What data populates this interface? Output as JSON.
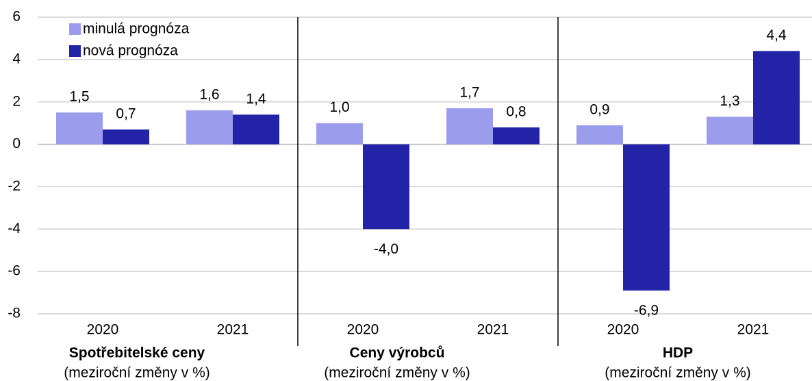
{
  "chart_data": {
    "type": "bar",
    "categories": [
      "2020",
      "2021",
      "2020",
      "2021",
      "2020",
      "2021"
    ],
    "groups": [
      {
        "title": "Spotřebitelské ceny",
        "subtitle": "(meziroční změny v %)"
      },
      {
        "title": "Ceny výrobců",
        "subtitle": "(meziroční změny v %)"
      },
      {
        "title": "HDP",
        "subtitle": "(meziroční změny v %)"
      }
    ],
    "series": [
      {
        "name": "minulá prognóza",
        "color": "#9b9cec",
        "values": [
          1.5,
          1.6,
          1.0,
          1.7,
          0.9,
          1.3
        ],
        "value_labels": [
          "1,5",
          "1,6",
          "1,0",
          "1,7",
          "0,9",
          "1,3"
        ]
      },
      {
        "name": "nová prognóza",
        "color": "#2323a8",
        "values": [
          0.7,
          1.4,
          -4.0,
          0.8,
          -6.9,
          4.4
        ],
        "value_labels": [
          "0,7",
          "1,4",
          "-4,0",
          "0,8",
          "-6,9",
          "4,4"
        ]
      }
    ],
    "ylim": [
      -8,
      6
    ],
    "yticks": [
      -8,
      -6,
      -4,
      -2,
      0,
      2,
      4,
      6
    ],
    "grid": true,
    "legend": "top-left"
  }
}
